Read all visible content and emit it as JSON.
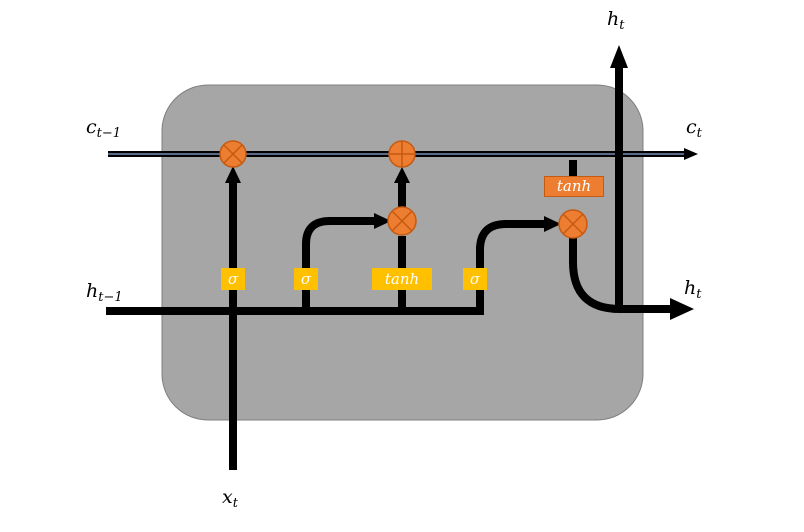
{
  "labels": {
    "c_prev": {
      "base": "c",
      "sub": "t−1"
    },
    "c_out": {
      "base": "c",
      "sub": "t"
    },
    "h_prev": {
      "base": "h",
      "sub": "t−1"
    },
    "h_out_top": {
      "base": "h",
      "sub": "t"
    },
    "h_out_right": {
      "base": "h",
      "sub": "t"
    },
    "x_in": {
      "base": "x",
      "sub": "t"
    }
  },
  "gates": {
    "forget": "σ",
    "input": "σ",
    "candidate": "tanh",
    "output": "σ",
    "cell_tanh": "tanh"
  },
  "colors": {
    "cell_fill": "#a6a6a6",
    "line": "#000000",
    "operator": "#ed7d31",
    "gate_yellow": "#ffc000",
    "cell_state_line": "#1f3864"
  }
}
